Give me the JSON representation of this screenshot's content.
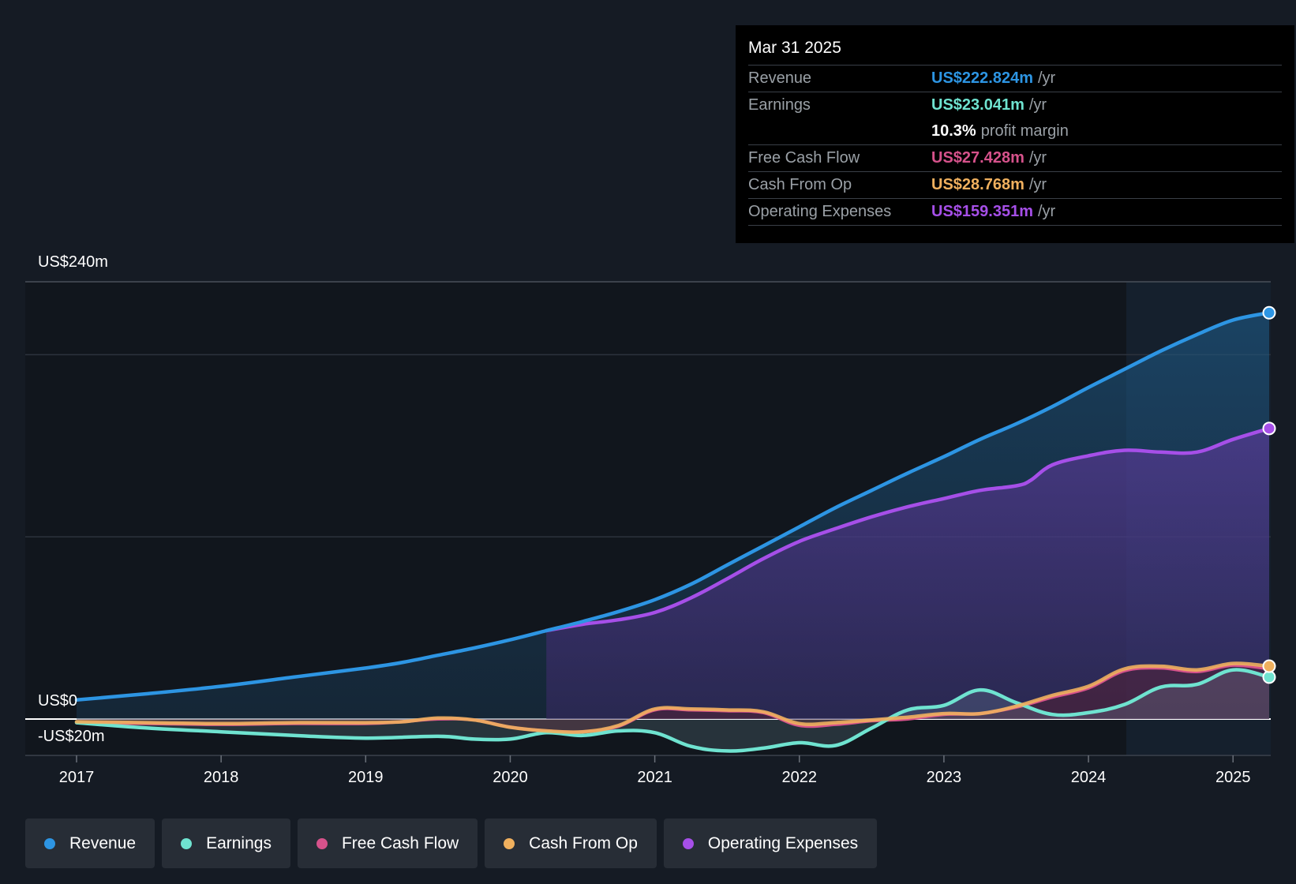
{
  "tooltip": {
    "date": "Mar 31 2025",
    "rows": [
      {
        "label": "Revenue",
        "value": "US$222.824m",
        "unit": "/yr",
        "color": "#2d95e3"
      },
      {
        "label": "Earnings",
        "value": "US$23.041m",
        "unit": "/yr",
        "color": "#6fe3d0"
      },
      {
        "label": "",
        "value": "10.3%",
        "unit": "profit margin",
        "color": "#ffffff"
      },
      {
        "label": "Free Cash Flow",
        "value": "US$27.428m",
        "unit": "/yr",
        "color": "#d6528b"
      },
      {
        "label": "Cash From Op",
        "value": "US$28.768m",
        "unit": "/yr",
        "color": "#f0b05e"
      },
      {
        "label": "Operating Expenses",
        "value": "US$159.351m",
        "unit": "/yr",
        "color": "#a64fe8"
      }
    ]
  },
  "chart_data": {
    "type": "line",
    "title": "",
    "y_tick_labels": [
      "US$240m",
      "US$0",
      "-US$20m"
    ],
    "ylim": [
      -20,
      240
    ],
    "xlim": [
      2017,
      2025.25
    ],
    "x_ticks": [
      "2017",
      "2018",
      "2019",
      "2020",
      "2021",
      "2022",
      "2023",
      "2024",
      "2025"
    ],
    "series": [
      {
        "name": "Revenue",
        "color": "#2d95e3",
        "x": [
          2017,
          2017.5,
          2018,
          2018.5,
          2019,
          2019.25,
          2019.5,
          2019.75,
          2020,
          2020.25,
          2020.5,
          2020.75,
          2021,
          2021.25,
          2021.5,
          2021.75,
          2022,
          2022.25,
          2022.5,
          2022.75,
          2023,
          2023.25,
          2023.5,
          2023.75,
          2024,
          2024.25,
          2024.5,
          2024.75,
          2025,
          2025.25
        ],
        "values": [
          10.5,
          14,
          18,
          23,
          28,
          31,
          35,
          39,
          43.5,
          48.5,
          53.5,
          59,
          65.5,
          74,
          84.5,
          95,
          105.5,
          116,
          125.5,
          135,
          144,
          153.5,
          162,
          171.5,
          182,
          192,
          202,
          211,
          219,
          223
        ]
      },
      {
        "name": "Earnings",
        "color": "#6fe3d0",
        "x": [
          2017,
          2017.5,
          2018,
          2018.5,
          2019,
          2019.5,
          2019.75,
          2020,
          2020.25,
          2020.5,
          2020.75,
          2021,
          2021.25,
          2021.5,
          2021.75,
          2022,
          2022.25,
          2022.5,
          2022.75,
          2023,
          2023.25,
          2023.5,
          2023.75,
          2024,
          2024.25,
          2024.5,
          2024.75,
          2025,
          2025.25
        ],
        "values": [
          -2,
          -5,
          -7,
          -9,
          -10.5,
          -9.5,
          -11,
          -11,
          -7.5,
          -9,
          -6.5,
          -7.5,
          -15,
          -17.5,
          -16,
          -13,
          -14.5,
          -5,
          5,
          7.5,
          16,
          9,
          2.5,
          3.5,
          8,
          17.5,
          19,
          27,
          23
        ]
      },
      {
        "name": "Free Cash Flow",
        "color": "#d6528b",
        "x": [
          2017,
          2017.5,
          2018,
          2018.5,
          2019,
          2019.25,
          2019.5,
          2019.75,
          2020,
          2020.25,
          2020.5,
          2020.75,
          2021,
          2021.25,
          2021.5,
          2021.75,
          2022,
          2022.25,
          2022.5,
          2022.75,
          2023,
          2023.25,
          2023.5,
          2023.75,
          2024,
          2024.25,
          2024.5,
          2024.75,
          2025,
          2025.25
        ],
        "values": [
          -2,
          -2.5,
          -3,
          -2.5,
          -2.5,
          -1.5,
          0,
          -0.5,
          -4.5,
          -6.5,
          -7,
          -4,
          5,
          5,
          4.5,
          3.5,
          -3.5,
          -3,
          -1,
          0,
          2.5,
          3,
          6.5,
          12,
          17,
          26.5,
          28,
          26,
          29.5,
          27.5
        ]
      },
      {
        "name": "Cash From Op",
        "color": "#f0b05e",
        "x": [
          2017,
          2017.5,
          2018,
          2018.5,
          2019,
          2019.25,
          2019.5,
          2019.75,
          2020,
          2020.25,
          2020.5,
          2020.75,
          2021,
          2021.25,
          2021.5,
          2021.75,
          2022,
          2022.25,
          2022.5,
          2022.75,
          2023,
          2023.25,
          2023.5,
          2023.75,
          2024,
          2024.25,
          2024.5,
          2024.75,
          2025,
          2025.25
        ],
        "values": [
          -1.5,
          -2,
          -2.5,
          -2,
          -2,
          -1.5,
          0.5,
          -0.5,
          -4.5,
          -6.5,
          -7,
          -3.5,
          5.5,
          5.5,
          5,
          4,
          -2.5,
          -2,
          -0.5,
          1,
          3,
          3,
          7,
          13,
          18,
          27.5,
          29,
          27,
          30.5,
          29
        ]
      },
      {
        "name": "Operating Expenses",
        "color": "#a64fe8",
        "x": [
          2020.25,
          2020.5,
          2020.75,
          2021,
          2021.25,
          2021.5,
          2021.75,
          2022,
          2022.25,
          2022.5,
          2022.75,
          2023,
          2023.25,
          2023.5,
          2023.6,
          2023.75,
          2024,
          2024.25,
          2024.5,
          2024.75,
          2025,
          2025.25
        ],
        "values": [
          48.5,
          52,
          54.5,
          58.5,
          66.5,
          77,
          88,
          97.5,
          104.5,
          111,
          116.5,
          121,
          125.5,
          128,
          131,
          139.5,
          144.5,
          147.5,
          146.5,
          146.5,
          153.5,
          159.5
        ]
      }
    ]
  },
  "legend": [
    {
      "label": "Revenue",
      "color": "#2d95e3"
    },
    {
      "label": "Earnings",
      "color": "#6fe3d0"
    },
    {
      "label": "Free Cash Flow",
      "color": "#d6528b"
    },
    {
      "label": "Cash From Op",
      "color": "#f0b05e"
    },
    {
      "label": "Operating Expenses",
      "color": "#a64fe8"
    }
  ]
}
